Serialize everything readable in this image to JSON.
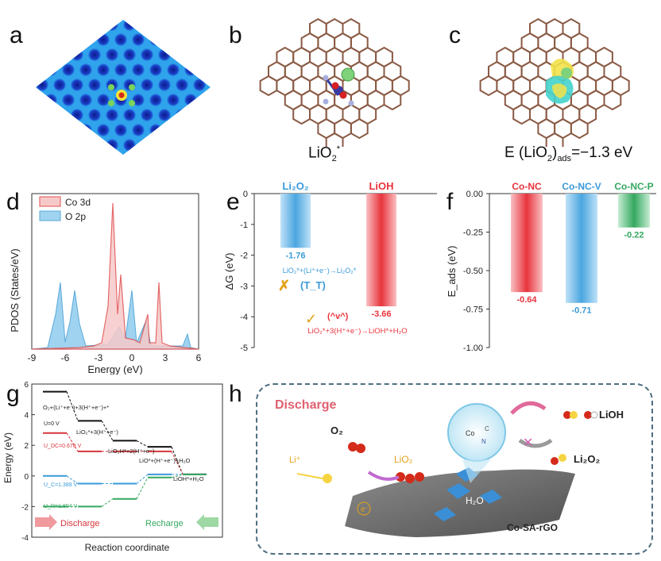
{
  "panels": {
    "a": {
      "label": "a"
    },
    "b": {
      "label": "b",
      "caption_main": "LiO",
      "caption_sub": "2",
      "caption_sup": "*"
    },
    "c": {
      "label": "c",
      "caption_pre": "E (LiO",
      "caption_sub1": "2",
      "caption_close": ")",
      "caption_sub2": "ads",
      "caption_post": "=−1.3 eV"
    },
    "d": {
      "label": "d",
      "ylabel": "PDOS (States/eV)",
      "xlabel": "Energy (eV)",
      "legend": [
        "Co 3d",
        "O 2p"
      ],
      "xticks": [
        "-9",
        "-6",
        "-3",
        "0",
        "3",
        "6"
      ]
    },
    "e": {
      "label": "e",
      "ylabel": "ΔG (eV)",
      "yticks": [
        "0",
        "-1",
        "-2",
        "-3",
        "-4",
        "-5"
      ],
      "bar_labels": [
        "Li₂O₂",
        "LiOH"
      ],
      "value_labels": [
        "-1.76",
        "-3.66"
      ],
      "annot_li2o2": "LiO₂*+(Li⁺+e⁻)→Li₂O₂*",
      "face_sad": "(T_T)",
      "face_happy": "(^v^)",
      "annot_lioh": "LiO₂*+3(H⁺+e⁻)→LiOH*+H₂O"
    },
    "f": {
      "label": "f",
      "ylabel": "E_ads (eV)",
      "yticks": [
        "0.00",
        "-0.25",
        "-0.50",
        "-0.75",
        "-1.00"
      ],
      "bar_labels": [
        "Co-NC",
        "Co-NC-V",
        "Co-NC-P"
      ],
      "value_labels": [
        "-0.64",
        "-0.71",
        "-0.22"
      ]
    },
    "g": {
      "label": "g",
      "ylabel": "Energy (eV)",
      "xlabel": "Reaction coordinate",
      "yticks": [
        "6",
        "4",
        "2",
        "0",
        "-2",
        "-4"
      ],
      "step_labels": [
        "O₂+(Li⁺+e⁻)+3(H⁺+e⁻)+*",
        "LiO₂*+3(H⁺+e⁻)",
        "LiO₂H*+2(H⁺+e⁻)",
        "LiO*+(H⁺+e⁻)+H₂O",
        "LiOH*+H₂O"
      ],
      "u_labels": [
        "U=0 V",
        "U_DC=0.678 V",
        "U_C=1.389 V",
        "U_R=1.894 V"
      ],
      "discharge": "Discharge",
      "recharge": "Recharge"
    },
    "h": {
      "label": "h",
      "title": "Discharge",
      "o2": "O₂",
      "li": "Li⁺",
      "lio2": "LiO₂",
      "lioh": "LiOH",
      "li2o2": "Li₂O₂",
      "h2o": "H₂O",
      "substrate": "Co-SA-rGO",
      "e_label": "e⁻",
      "zoom_co": "Co",
      "zoom_c": "C",
      "zoom_n": "N"
    }
  },
  "colors": {
    "red": "#e8343c",
    "blue": "#3a9ad9",
    "green": "#34a860",
    "brown": "#8a5a44",
    "axis": "#333333"
  },
  "chart_data": [
    {
      "type": "area",
      "title": "",
      "xlabel": "Energy (eV)",
      "ylabel": "PDOS (States/eV)",
      "xlim": [
        -9,
        6
      ],
      "series": [
        {
          "name": "Co 3d"
        },
        {
          "name": "O 2p"
        }
      ]
    },
    {
      "type": "bar",
      "xlabel": "",
      "ylabel": "ΔG (eV)",
      "ylim": [
        -5,
        0
      ],
      "categories": [
        "Li₂O₂",
        "LiOH"
      ],
      "values": [
        -1.76,
        -3.66
      ]
    },
    {
      "type": "bar",
      "xlabel": "",
      "ylabel": "E_ads (eV)",
      "ylim": [
        -1.0,
        0.0
      ],
      "categories": [
        "Co-NC",
        "Co-NC-V",
        "Co-NC-P"
      ],
      "values": [
        -0.64,
        -0.71,
        -0.22
      ]
    },
    {
      "type": "line",
      "xlabel": "Reaction coordinate",
      "ylabel": "Energy (eV)",
      "ylim": [
        -4,
        6
      ],
      "categories": [
        "O₂+(Li⁺+e⁻)+3(H⁺+e⁻)+*",
        "LiO₂*+3(H⁺+e⁻)",
        "LiO₂H*+2(H⁺+e⁻)",
        "LiO*+(H⁺+e⁻)+H₂O",
        "LiOH*+H₂O"
      ],
      "series": [
        {
          "name": "U=0 V",
          "values": [
            5.5,
            3.6,
            2.3,
            1.9,
            0.1
          ]
        },
        {
          "name": "U_DC=0.678 V",
          "values": [
            2.8,
            1.6,
            1.6,
            1.6,
            0.1
          ]
        },
        {
          "name": "U_C=1.389 V",
          "values": [
            0.0,
            -0.5,
            -0.5,
            0.1,
            0.1
          ]
        },
        {
          "name": "U_R=1.894 V",
          "values": [
            -2.0,
            -2.0,
            -1.5,
            -0.1,
            0.1
          ]
        }
      ]
    }
  ]
}
